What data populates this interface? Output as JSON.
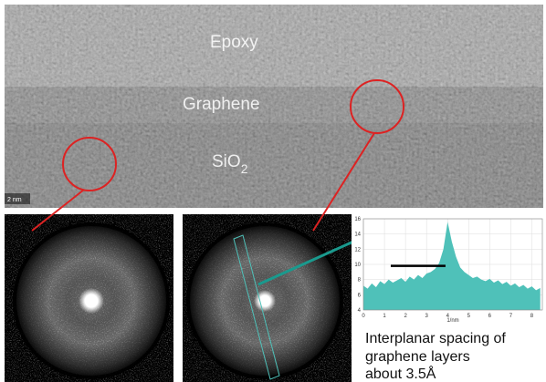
{
  "image_labels": {
    "epoxy": "Epoxy",
    "graphene": "Graphene",
    "sio": "SiO",
    "sio_sub": "2",
    "scale": "2 nm"
  },
  "chart_data": {
    "type": "area",
    "xlabel": "1/nm",
    "color": "#4fc1b9",
    "x": [
      0,
      0.2,
      0.4,
      0.6,
      0.8,
      1,
      1.2,
      1.4,
      1.6,
      1.8,
      2,
      2.2,
      2.4,
      2.6,
      2.8,
      3,
      3.2,
      3.4,
      3.6,
      3.8,
      4,
      4.2,
      4.4,
      4.6,
      4.8,
      5,
      5.2,
      5.4,
      5.6,
      5.8,
      6,
      6.2,
      6.4,
      6.6,
      6.8,
      7,
      7.2,
      7.4,
      7.6,
      7.8,
      8,
      8.2,
      8.4
    ],
    "values": [
      7.2,
      6.8,
      7.5,
      7.0,
      7.8,
      7.4,
      8.0,
      7.6,
      7.9,
      8.2,
      7.7,
      8.4,
      8.0,
      8.6,
      8.2,
      8.8,
      9.0,
      9.4,
      10.2,
      12.0,
      15.6,
      13.0,
      11.0,
      9.6,
      9.0,
      8.6,
      8.2,
      8.4,
      8.0,
      7.8,
      8.1,
      7.6,
      7.9,
      7.4,
      7.7,
      7.2,
      7.5,
      7.0,
      7.3,
      6.8,
      7.1,
      6.6,
      6.9
    ],
    "xlim": [
      0,
      8.5
    ],
    "ylim": [
      4,
      16
    ],
    "xticks": [
      0,
      1,
      2,
      3,
      4,
      5,
      6,
      7,
      8
    ],
    "yticks": [
      4,
      6,
      8,
      10,
      12,
      14,
      16
    ],
    "grid": true,
    "spacing_bar": {
      "x": [
        1.3,
        3.9
      ],
      "y": 9.8
    }
  },
  "caption": [
    "Interplanar spacing of",
    "graphene layers",
    "about 3.5Å"
  ]
}
